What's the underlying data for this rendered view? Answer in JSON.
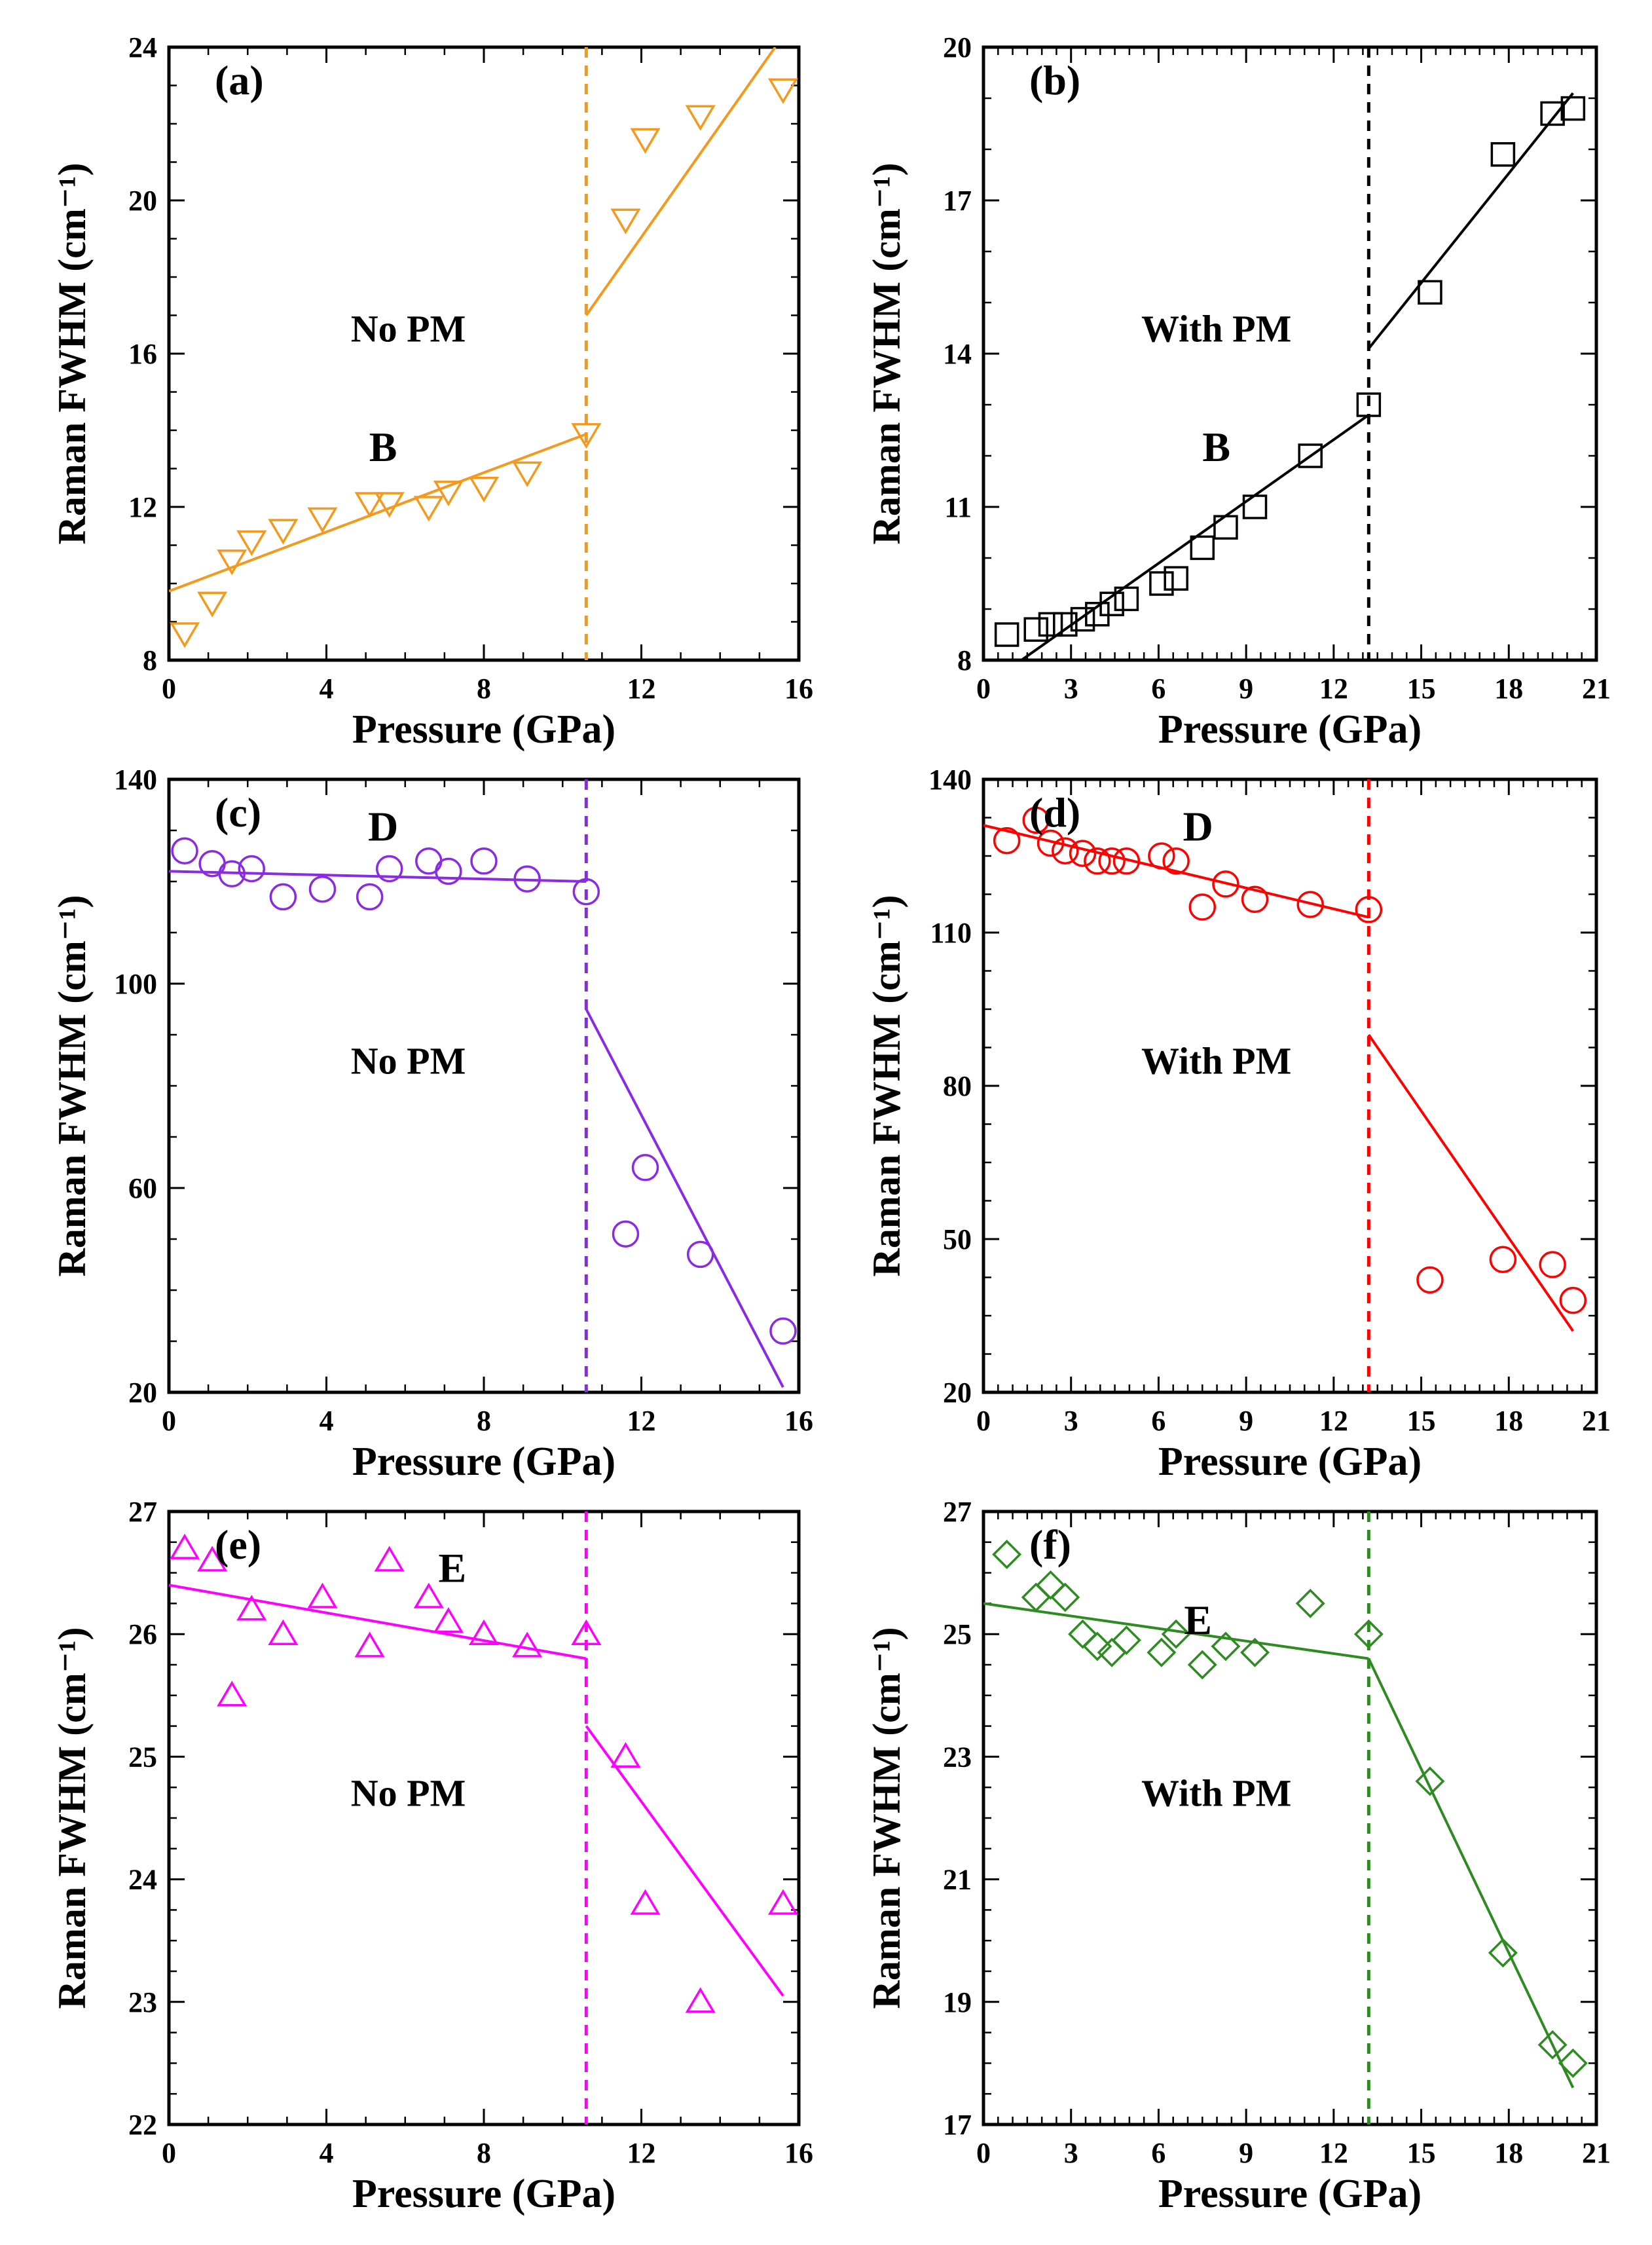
{
  "chart_data": [
    {
      "id": "a",
      "type": "scatter",
      "panel_label": "(a)",
      "annotation": "No PM",
      "mode_label": "B",
      "xlabel": "Pressure (GPa)",
      "ylabel": "Raman FWHM (cm⁻¹)",
      "xlim": [
        0,
        16
      ],
      "ylim": [
        8,
        24
      ],
      "xticks": [
        0,
        4,
        8,
        12,
        16
      ],
      "yticks": [
        8,
        12,
        16,
        20,
        24
      ],
      "color": "#f39a1e",
      "marker": "triangle-down",
      "transition": 10.6,
      "points": [
        [
          0.4,
          8.7
        ],
        [
          1.1,
          9.5
        ],
        [
          1.6,
          10.6
        ],
        [
          2.1,
          11.1
        ],
        [
          2.9,
          11.4
        ],
        [
          3.9,
          11.7
        ],
        [
          5.1,
          12.1
        ],
        [
          5.6,
          12.1
        ],
        [
          6.6,
          12.0
        ],
        [
          7.1,
          12.4
        ],
        [
          8.0,
          12.5
        ],
        [
          9.1,
          12.9
        ],
        [
          10.6,
          13.9
        ],
        [
          11.6,
          19.5
        ],
        [
          12.1,
          21.6
        ],
        [
          13.5,
          22.2
        ],
        [
          15.6,
          22.9
        ]
      ],
      "fits": [
        [
          [
            0,
            9.8
          ],
          [
            10.6,
            13.9
          ]
        ],
        [
          [
            10.6,
            17.0
          ],
          [
            15.4,
            24.0
          ]
        ]
      ]
    },
    {
      "id": "b",
      "type": "scatter",
      "panel_label": "(b)",
      "annotation": "With PM",
      "mode_label": "B",
      "xlabel": "Pressure (GPa)",
      "ylabel": "Raman FWHM (cm⁻¹)",
      "xlim": [
        0,
        21
      ],
      "ylim": [
        8,
        20
      ],
      "xticks": [
        0,
        3,
        6,
        9,
        12,
        15,
        18,
        21
      ],
      "yticks": [
        8,
        11,
        14,
        17,
        20
      ],
      "color": "#000000",
      "marker": "square",
      "transition": 13.2,
      "points": [
        [
          0.8,
          8.5
        ],
        [
          1.8,
          8.6
        ],
        [
          2.3,
          8.7
        ],
        [
          2.8,
          8.7
        ],
        [
          3.4,
          8.8
        ],
        [
          3.9,
          8.9
        ],
        [
          4.4,
          9.1
        ],
        [
          4.9,
          9.2
        ],
        [
          6.1,
          9.5
        ],
        [
          6.6,
          9.6
        ],
        [
          7.5,
          10.2
        ],
        [
          8.3,
          10.6
        ],
        [
          9.3,
          11.0
        ],
        [
          11.2,
          12.0
        ],
        [
          13.2,
          13.0
        ],
        [
          15.3,
          15.2
        ],
        [
          17.8,
          17.9
        ],
        [
          19.5,
          18.7
        ],
        [
          20.2,
          18.8
        ]
      ],
      "fits": [
        [
          [
            1.3,
            8.0
          ],
          [
            13.2,
            12.8
          ]
        ],
        [
          [
            13.2,
            14.1
          ],
          [
            20.2,
            19.1
          ]
        ]
      ]
    },
    {
      "id": "c",
      "type": "scatter",
      "panel_label": "(c)",
      "annotation": "No PM",
      "mode_label": "D",
      "xlabel": "Pressure (GPa)",
      "ylabel": "Raman FWHM (cm⁻¹)",
      "xlim": [
        0,
        16
      ],
      "ylim": [
        20,
        140
      ],
      "xticks": [
        0,
        4,
        8,
        12,
        16
      ],
      "yticks": [
        20,
        60,
        100,
        140
      ],
      "color": "#8a2be2",
      "marker": "circle",
      "transition": 10.6,
      "points": [
        [
          0.4,
          126
        ],
        [
          1.1,
          123.5
        ],
        [
          1.6,
          121.5
        ],
        [
          2.1,
          122.5
        ],
        [
          2.9,
          117
        ],
        [
          3.9,
          118.5
        ],
        [
          5.1,
          117
        ],
        [
          5.6,
          122.5
        ],
        [
          6.6,
          124
        ],
        [
          7.1,
          122
        ],
        [
          8.0,
          124
        ],
        [
          9.1,
          120.5
        ],
        [
          10.6,
          118
        ],
        [
          11.6,
          51
        ],
        [
          12.1,
          64
        ],
        [
          13.5,
          47
        ],
        [
          15.6,
          32
        ]
      ],
      "fits": [
        [
          [
            0,
            122
          ],
          [
            10.6,
            120
          ]
        ],
        [
          [
            10.6,
            95
          ],
          [
            15.6,
            21
          ]
        ]
      ]
    },
    {
      "id": "d",
      "type": "scatter",
      "panel_label": "(d)",
      "annotation": "With PM",
      "mode_label": "D",
      "xlabel": "Pressure (GPa)",
      "ylabel": "Raman FWHM (cm⁻¹)",
      "xlim": [
        0,
        21
      ],
      "ylim": [
        20,
        140
      ],
      "xticks": [
        0,
        3,
        6,
        9,
        12,
        15,
        18,
        21
      ],
      "yticks": [
        20,
        50,
        80,
        110,
        140
      ],
      "color": "#ff0000",
      "marker": "circle",
      "transition": 13.2,
      "points": [
        [
          0.8,
          128
        ],
        [
          1.8,
          132
        ],
        [
          2.3,
          127.5
        ],
        [
          2.8,
          126
        ],
        [
          3.4,
          125.5
        ],
        [
          3.9,
          124
        ],
        [
          4.4,
          124
        ],
        [
          4.9,
          124
        ],
        [
          6.1,
          125
        ],
        [
          6.6,
          124
        ],
        [
          7.5,
          115
        ],
        [
          8.3,
          119.5
        ],
        [
          9.3,
          116.5
        ],
        [
          11.2,
          115.5
        ],
        [
          13.2,
          114.5
        ]
      ],
      "points_after": [
        [
          15.3,
          42
        ],
        [
          17.8,
          46
        ],
        [
          19.5,
          45
        ],
        [
          20.2,
          38
        ]
      ],
      "fits": [
        [
          [
            0,
            131
          ],
          [
            13.2,
            113
          ]
        ],
        [
          [
            13.2,
            90
          ],
          [
            20.2,
            32
          ]
        ]
      ]
    },
    {
      "id": "e",
      "type": "scatter",
      "panel_label": "(e)",
      "annotation": "No PM",
      "mode_label": "E",
      "xlabel": "Pressure (GPa)",
      "ylabel": "Raman FWHM (cm⁻¹)",
      "xlim": [
        0,
        16
      ],
      "ylim": [
        22,
        27
      ],
      "xticks": [
        0,
        4,
        8,
        12,
        16
      ],
      "yticks": [
        22,
        23,
        24,
        25,
        26,
        27
      ],
      "color": "#ff00ff",
      "marker": "triangle-up",
      "transition": 10.6,
      "points": [
        [
          0.4,
          26.7
        ],
        [
          1.1,
          26.6
        ],
        [
          1.6,
          25.5
        ],
        [
          2.1,
          26.2
        ],
        [
          2.9,
          26.0
        ],
        [
          3.9,
          26.3
        ],
        [
          5.1,
          25.9
        ],
        [
          5.6,
          26.6
        ],
        [
          6.6,
          26.3
        ],
        [
          7.1,
          26.1
        ],
        [
          8.0,
          26.0
        ],
        [
          9.1,
          25.9
        ],
        [
          10.6,
          26.0
        ],
        [
          11.6,
          25.0
        ],
        [
          12.1,
          23.8
        ],
        [
          13.5,
          23.0
        ],
        [
          15.6,
          23.8
        ]
      ],
      "fits": [
        [
          [
            0,
            26.4
          ],
          [
            10.6,
            25.8
          ]
        ],
        [
          [
            10.6,
            25.25
          ],
          [
            15.6,
            23.05
          ]
        ]
      ]
    },
    {
      "id": "f",
      "type": "scatter",
      "panel_label": "(f)",
      "annotation": "With PM",
      "mode_label": "E",
      "xlabel": "Pressure (GPa)",
      "ylabel": "Raman FWHM (cm⁻¹)",
      "xlim": [
        0,
        21
      ],
      "ylim": [
        17,
        27
      ],
      "xticks": [
        0,
        3,
        6,
        9,
        12,
        15,
        18,
        21
      ],
      "yticks": [
        17,
        19,
        21,
        23,
        25,
        27
      ],
      "color": "#2e8b22",
      "marker": "diamond",
      "transition": 13.2,
      "points": [
        [
          0.8,
          26.3
        ],
        [
          1.8,
          25.6
        ],
        [
          2.3,
          25.8
        ],
        [
          2.8,
          25.6
        ],
        [
          3.4,
          25.0
        ],
        [
          3.9,
          24.8
        ],
        [
          4.4,
          24.7
        ],
        [
          4.9,
          24.9
        ],
        [
          6.1,
          24.7
        ],
        [
          6.6,
          25.0
        ],
        [
          7.5,
          24.5
        ],
        [
          8.3,
          24.8
        ],
        [
          9.3,
          24.7
        ],
        [
          11.2,
          25.5
        ],
        [
          13.2,
          25.0
        ],
        [
          15.3,
          22.6
        ],
        [
          17.8,
          19.8
        ],
        [
          19.5,
          18.3
        ],
        [
          20.2,
          18.0
        ]
      ],
      "fits": [
        [
          [
            0,
            25.5
          ],
          [
            13.2,
            24.6
          ]
        ],
        [
          [
            13.2,
            24.6
          ],
          [
            20.2,
            17.6
          ]
        ]
      ]
    }
  ]
}
